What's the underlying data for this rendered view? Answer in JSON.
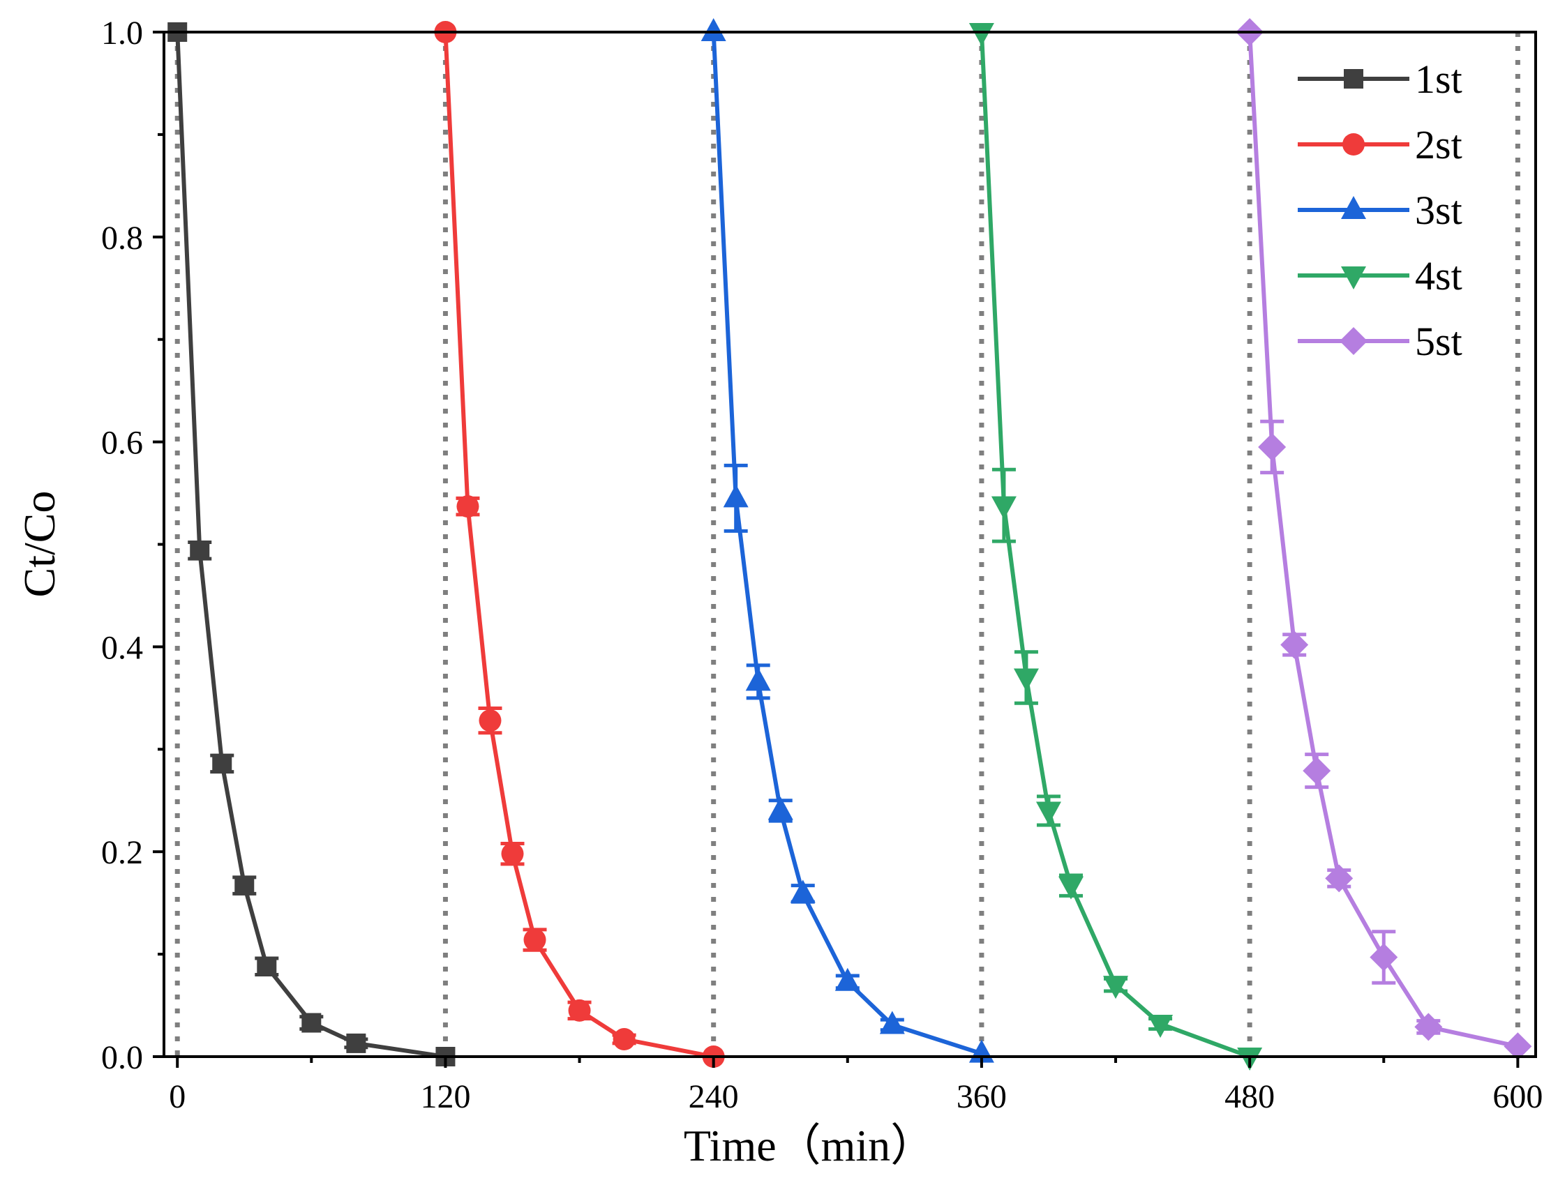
{
  "chart_data": {
    "type": "line",
    "title": "",
    "xlabel": "Time（min）",
    "ylabel": "Ct/Co",
    "xlim": [
      -6,
      608
    ],
    "ylim": [
      0,
      1.0
    ],
    "xticks": [
      0,
      120,
      240,
      360,
      480,
      600
    ],
    "xtick_labels": [
      "0",
      "120",
      "240",
      "360",
      "480",
      "600"
    ],
    "yticks": [
      0.0,
      0.2,
      0.4,
      0.6,
      0.8,
      1.0
    ],
    "ytick_labels": [
      "0.0",
      "0.2",
      "0.4",
      "0.6",
      "0.8",
      "1.0"
    ],
    "cycle_boundaries": [
      0,
      120,
      240,
      360,
      480,
      600
    ],
    "legend_position": "top-right",
    "series": [
      {
        "name": "1st",
        "color": "#3f3f3f",
        "marker": "square",
        "x": [
          0,
          10,
          20,
          30,
          40,
          60,
          80,
          120
        ],
        "y": [
          1.0,
          0.494,
          0.286,
          0.167,
          0.088,
          0.033,
          0.013,
          0.0
        ],
        "err": [
          0,
          0.008,
          0.008,
          0.008,
          0.008,
          0.006,
          0.004,
          0
        ]
      },
      {
        "name": "2st",
        "color": "#ef3b3a",
        "marker": "circle",
        "x": [
          120,
          130,
          140,
          150,
          160,
          180,
          200,
          240
        ],
        "y": [
          1.0,
          0.537,
          0.328,
          0.198,
          0.114,
          0.045,
          0.017,
          0.0
        ],
        "err": [
          0,
          0.008,
          0.012,
          0.01,
          0.01,
          0.008,
          0.004,
          0
        ]
      },
      {
        "name": "3st",
        "color": "#1c64d8",
        "marker": "triangle-up",
        "x": [
          240,
          250,
          260,
          270,
          280,
          300,
          320,
          360
        ],
        "y": [
          1.0,
          0.545,
          0.366,
          0.24,
          0.159,
          0.073,
          0.031,
          0.003
        ],
        "err": [
          0,
          0.032,
          0.016,
          0.01,
          0.008,
          0.006,
          0.005,
          0
        ]
      },
      {
        "name": "4st",
        "color": "#2fa866",
        "marker": "triangle-down",
        "x": [
          360,
          370,
          380,
          390,
          400,
          420,
          440,
          480
        ],
        "y": [
          1.0,
          0.538,
          0.37,
          0.24,
          0.167,
          0.07,
          0.032,
          0.0
        ],
        "err": [
          0,
          0.035,
          0.025,
          0.014,
          0.01,
          0.006,
          0.005,
          0
        ]
      },
      {
        "name": "5st",
        "color": "#b57ee0",
        "marker": "diamond",
        "x": [
          480,
          490,
          500,
          510,
          520,
          540,
          560,
          600
        ],
        "y": [
          1.0,
          0.595,
          0.402,
          0.279,
          0.174,
          0.097,
          0.029,
          0.01
        ],
        "err": [
          0,
          0.025,
          0.01,
          0.016,
          0.008,
          0.025,
          0.006,
          0
        ]
      }
    ]
  }
}
